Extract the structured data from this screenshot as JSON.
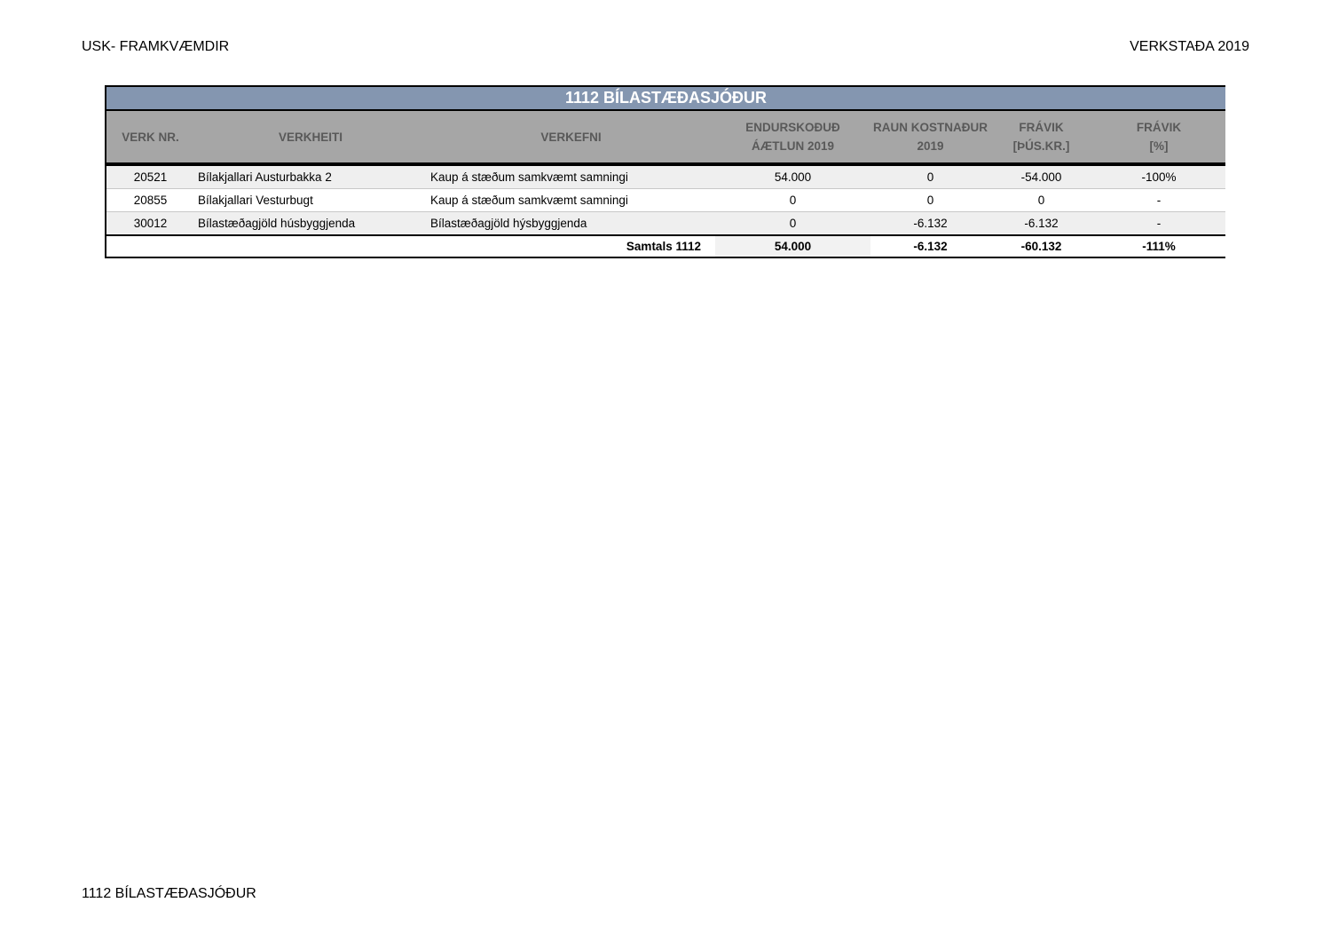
{
  "page": {
    "header_left": "USK- FRAMKVÆMDIR",
    "header_right": "VERKSTAÐA 2019",
    "footer": "1112 BÍLASTÆÐASJÓÐUR"
  },
  "table": {
    "title": "1112 BÍLASTÆÐASJÓÐUR",
    "columns": [
      {
        "line1": "VERK NR.",
        "line2": ""
      },
      {
        "line1": "VERKHEITI",
        "line2": ""
      },
      {
        "line1": "VERKEFNI",
        "line2": ""
      },
      {
        "line1": "ENDURSKOÐUÐ",
        "line2": "ÁÆTLUN 2019"
      },
      {
        "line1": "RAUN KOSTNAÐUR",
        "line2": "2019"
      },
      {
        "line1": "FRÁVIK",
        "line2": "[ÞÚS.KR.]"
      },
      {
        "line1": "FRÁVIK",
        "line2": "[%]"
      }
    ],
    "rows": [
      [
        "20521",
        "Bílakjallari Austurbakka 2",
        "Kaup á stæðum samkvæmt samningi",
        "54.000",
        "0",
        "-54.000",
        "-100%"
      ],
      [
        "20855",
        "Bílakjallari Vesturbugt",
        "Kaup á stæðum samkvæmt samningi",
        "0",
        "0",
        "0",
        "-"
      ],
      [
        "30012",
        "Bílastæðagjöld húsbyggjenda",
        "Bílastæðagjöld hýsbyggjenda",
        "0",
        "-6.132",
        "-6.132",
        "-"
      ]
    ],
    "total": {
      "label": "Samtals 1112",
      "values": [
        "54.000",
        "-6.132",
        "-60.132",
        "-111%"
      ]
    }
  },
  "colors": {
    "title_bg": "#8496b0",
    "header_bg": "#a6a6a6",
    "header_text": "#595959",
    "alt_row": "#efefef"
  }
}
